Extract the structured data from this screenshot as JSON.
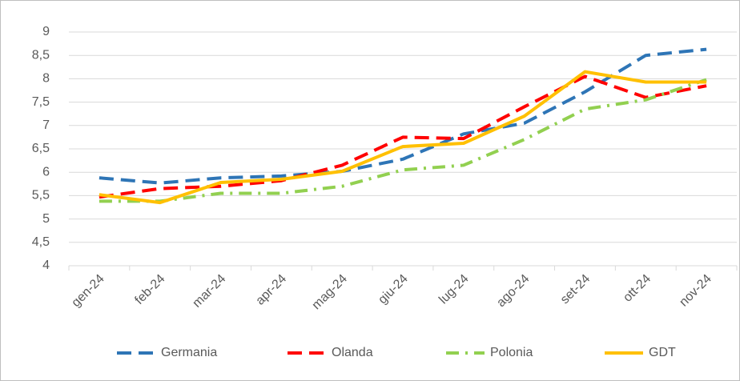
{
  "chart_data": {
    "type": "line",
    "categories": [
      "gen-24",
      "feb-24",
      "mar-24",
      "apr-24",
      "mag-24",
      "giu-24",
      "lug-24",
      "ago-24",
      "set-24",
      "ott-24",
      "nov-24"
    ],
    "series": [
      {
        "name": "Germania",
        "color": "#2e75b6",
        "style": "dashed",
        "values": [
          5.88,
          5.77,
          5.88,
          5.92,
          6.02,
          6.28,
          6.82,
          7.05,
          7.72,
          8.5,
          8.63
        ]
      },
      {
        "name": "Olanda",
        "color": "#ff0000",
        "style": "dashed",
        "values": [
          5.47,
          5.65,
          5.7,
          5.82,
          6.15,
          6.75,
          6.72,
          7.4,
          8.05,
          7.6,
          7.85
        ]
      },
      {
        "name": "Polonia",
        "color": "#92d050",
        "style": "dash-dot",
        "values": [
          5.38,
          5.38,
          5.55,
          5.55,
          5.7,
          6.05,
          6.15,
          6.7,
          7.35,
          7.55,
          7.98
        ]
      },
      {
        "name": "GDT",
        "color": "#ffc000",
        "style": "solid",
        "values": [
          5.52,
          5.35,
          5.78,
          5.85,
          6.02,
          6.55,
          6.62,
          7.2,
          8.15,
          7.93,
          7.93
        ]
      }
    ],
    "ylim": [
      4,
      9
    ],
    "yticks": [
      4,
      {
        "value": 4.5,
        "label": "4,5"
      },
      5,
      {
        "value": 5.5,
        "label": "5,5"
      },
      6,
      {
        "value": 6.5,
        "label": "6,5"
      },
      7,
      {
        "value": 7.5,
        "label": "7,5"
      },
      8,
      {
        "value": 8.5,
        "label": "8,5"
      },
      9
    ],
    "grid": true,
    "legend": "bottom"
  }
}
